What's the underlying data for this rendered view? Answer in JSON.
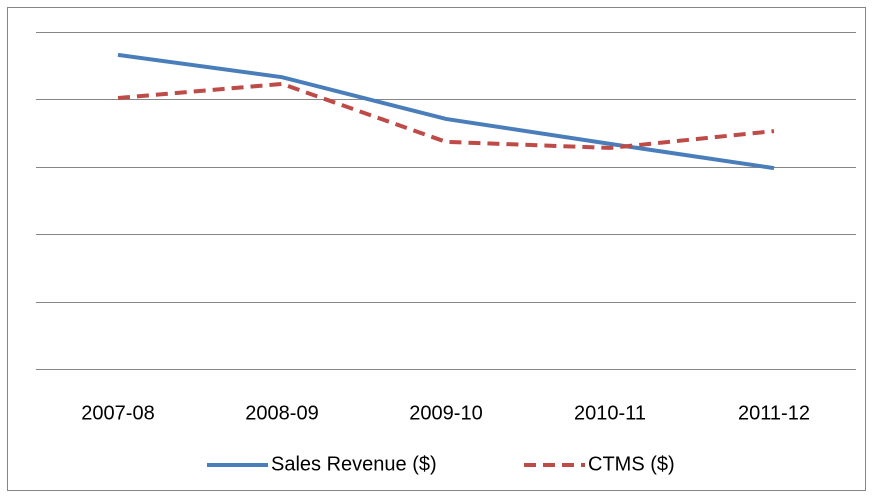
{
  "chart_data": {
    "type": "line",
    "categories": [
      "2007-08",
      "2008-09",
      "2009-10",
      "2010-11",
      "2011-12"
    ],
    "series": [
      {
        "name": "Sales Revenue ($)",
        "color": "#4a7ebb",
        "dashed": false,
        "values": [
          4.66,
          4.33,
          3.71,
          3.34,
          2.98
        ]
      },
      {
        "name": "CTMS ($)",
        "color": "#be4b48",
        "dashed": true,
        "values": [
          4.02,
          4.23,
          3.37,
          3.28,
          3.53
        ]
      }
    ],
    "ylim": [
      0,
      5
    ],
    "yticks": [
      0,
      1,
      2,
      3,
      4,
      5
    ],
    "grid": true,
    "legend": "bottom"
  }
}
